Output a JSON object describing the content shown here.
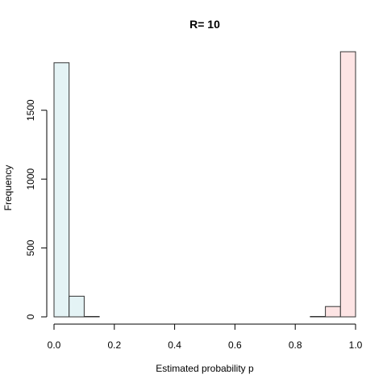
{
  "chart_data": {
    "type": "bar",
    "title": "R= 10",
    "xlabel": "Estimated probability p",
    "ylabel": "Frequency",
    "xlim": [
      0,
      1
    ],
    "ylim": [
      0,
      1920
    ],
    "x_ticks": [
      "0.0",
      "0.2",
      "0.4",
      "0.6",
      "0.8",
      "1.0"
    ],
    "y_ticks": [
      "0",
      "500",
      "1000",
      "1500"
    ],
    "bins": [
      {
        "start": 0.0,
        "end": 0.05,
        "value": 1845,
        "color": "#e4f3f5"
      },
      {
        "start": 0.05,
        "end": 0.1,
        "value": 150,
        "color": "#e4f3f5"
      },
      {
        "start": 0.1,
        "end": 0.15,
        "value": 3,
        "color": "#e4f3f5"
      },
      {
        "start": 0.15,
        "end": 0.2,
        "value": 0,
        "color": "#e4f3f5"
      },
      {
        "start": 0.2,
        "end": 0.25,
        "value": 0,
        "color": "#e4f3f5"
      },
      {
        "start": 0.25,
        "end": 0.3,
        "value": 0,
        "color": "#e4f3f5"
      },
      {
        "start": 0.3,
        "end": 0.35,
        "value": 0,
        "color": "#e4f3f5"
      },
      {
        "start": 0.35,
        "end": 0.4,
        "value": 0,
        "color": "#e4f3f5"
      },
      {
        "start": 0.4,
        "end": 0.45,
        "value": 0,
        "color": "#e4f3f5"
      },
      {
        "start": 0.45,
        "end": 0.5,
        "value": 0,
        "color": "#e4f3f5"
      },
      {
        "start": 0.5,
        "end": 0.55,
        "value": 0,
        "color": "#fde4e4"
      },
      {
        "start": 0.55,
        "end": 0.6,
        "value": 0,
        "color": "#fde4e4"
      },
      {
        "start": 0.6,
        "end": 0.65,
        "value": 0,
        "color": "#fde4e4"
      },
      {
        "start": 0.65,
        "end": 0.7,
        "value": 0,
        "color": "#fde4e4"
      },
      {
        "start": 0.7,
        "end": 0.75,
        "value": 0,
        "color": "#fde4e4"
      },
      {
        "start": 0.75,
        "end": 0.8,
        "value": 0,
        "color": "#fde4e4"
      },
      {
        "start": 0.8,
        "end": 0.85,
        "value": 0,
        "color": "#fde4e4"
      },
      {
        "start": 0.85,
        "end": 0.9,
        "value": 3,
        "color": "#fde4e4"
      },
      {
        "start": 0.9,
        "end": 0.95,
        "value": 75,
        "color": "#fde4e4"
      },
      {
        "start": 0.95,
        "end": 1.0,
        "value": 1925,
        "color": "#fde4e4"
      }
    ],
    "grid": false,
    "legend": "none"
  }
}
